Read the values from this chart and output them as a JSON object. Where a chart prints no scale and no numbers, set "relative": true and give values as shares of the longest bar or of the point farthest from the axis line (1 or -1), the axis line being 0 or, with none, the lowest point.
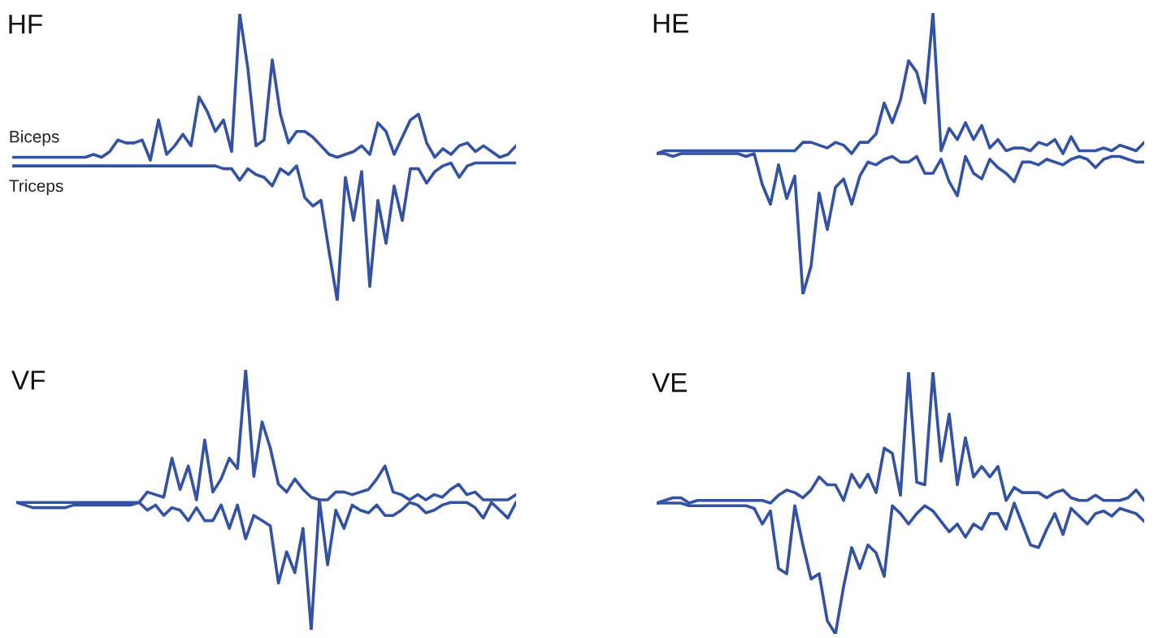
{
  "chart_data": [
    {
      "type": "line",
      "title": "HF",
      "relative": true,
      "legend": false,
      "categories": [
        null,
        null,
        null,
        null,
        null,
        null,
        null,
        null,
        null,
        null,
        null,
        null,
        null,
        null,
        null,
        null,
        null,
        null,
        null,
        null,
        null,
        null,
        null,
        null,
        null,
        null,
        null,
        null,
        null,
        null,
        null,
        null,
        null,
        null,
        null,
        null,
        null,
        null,
        null,
        null,
        null,
        null,
        null,
        null,
        null,
        null,
        null,
        null,
        null,
        null,
        null,
        null,
        null,
        null,
        null,
        null,
        null,
        null,
        null,
        null,
        null,
        null,
        null
      ],
      "series": [
        {
          "name": "Biceps",
          "color": "#3352a3",
          "values": [
            0.5,
            0.5,
            0.5,
            0.5,
            0.5,
            0.5,
            0.5,
            0.5,
            0.5,
            0.5,
            0.51,
            0.5,
            0.52,
            0.56,
            0.55,
            0.55,
            0.56,
            0.49,
            0.63,
            0.51,
            0.54,
            0.58,
            0.54,
            0.71,
            0.66,
            0.59,
            0.63,
            0.52,
            1.0,
            0.81,
            0.54,
            0.56,
            0.84,
            0.65,
            0.55,
            0.59,
            0.59,
            0.57,
            0.54,
            0.51,
            0.5,
            0.51,
            0.52,
            0.54,
            0.51,
            0.62,
            0.59,
            0.51,
            0.57,
            0.63,
            0.65,
            0.55,
            0.5,
            0.53,
            0.51,
            0.54,
            0.55,
            0.52,
            0.54,
            0.52,
            0.5,
            0.51,
            0.54
          ]
        },
        {
          "name": "Triceps",
          "color": "#3352a3",
          "values": [
            0.47,
            0.47,
            0.47,
            0.47,
            0.47,
            0.47,
            0.47,
            0.47,
            0.47,
            0.47,
            0.47,
            0.47,
            0.47,
            0.47,
            0.47,
            0.47,
            0.47,
            0.47,
            0.47,
            0.47,
            0.47,
            0.47,
            0.47,
            0.47,
            0.47,
            0.47,
            0.46,
            0.46,
            0.42,
            0.46,
            0.44,
            0.43,
            0.4,
            0.46,
            0.44,
            0.47,
            0.36,
            0.33,
            0.35,
            0.17,
            0,
            0.43,
            0.28,
            0.45,
            0.05,
            0.35,
            0.2,
            0.4,
            0.28,
            0.46,
            0.46,
            0.41,
            0.45,
            0.47,
            0.48,
            0.43,
            0.47,
            0.48,
            0.48,
            0.48,
            0.48,
            0.48,
            0.48
          ]
        }
      ]
    },
    {
      "type": "line",
      "title": "HE",
      "relative": true,
      "legend": false,
      "categories": [
        null,
        null,
        null,
        null,
        null,
        null,
        null,
        null,
        null,
        null,
        null,
        null,
        null,
        null,
        null,
        null,
        null,
        null,
        null,
        null,
        null,
        null,
        null,
        null,
        null,
        null,
        null,
        null,
        null,
        null,
        null,
        null,
        null,
        null,
        null,
        null,
        null,
        null,
        null,
        null,
        null,
        null,
        null,
        null,
        null,
        null,
        null,
        null,
        null,
        null,
        null,
        null,
        null,
        null,
        null,
        null,
        null,
        null,
        null,
        null,
        null
      ],
      "series": [
        {
          "color": "#3352a3",
          "values": [
            0.5,
            0.51,
            0.51,
            0.51,
            0.51,
            0.51,
            0.51,
            0.51,
            0.51,
            0.51,
            0.51,
            0.51,
            0.51,
            0.51,
            0.51,
            0.51,
            0.51,
            0.51,
            0.54,
            0.54,
            0.53,
            0.52,
            0.54,
            0.53,
            0.5,
            0.54,
            0.54,
            0.57,
            0.68,
            0.61,
            0.69,
            0.83,
            0.79,
            0.68,
            1.0,
            0.51,
            0.59,
            0.55,
            0.61,
            0.55,
            0.6,
            0.52,
            0.55,
            0.51,
            0.52,
            0.52,
            0.51,
            0.54,
            0.53,
            0.55,
            0.5,
            0.56,
            0.51,
            0.51,
            0.51,
            0.52,
            0.51,
            0.53,
            0.52,
            0.51,
            0.54
          ]
        },
        {
          "color": "#3352a3",
          "values": [
            0.5,
            0.5,
            0.49,
            0.5,
            0.5,
            0.5,
            0.5,
            0.5,
            0.5,
            0.5,
            0.5,
            0.49,
            0.5,
            0.39,
            0.32,
            0.46,
            0.34,
            0.42,
            0,
            0.1,
            0.36,
            0.23,
            0.38,
            0.41,
            0.32,
            0.42,
            0.47,
            0.46,
            0.48,
            0.49,
            0.47,
            0.47,
            0.49,
            0.43,
            0.43,
            0.48,
            0.4,
            0.35,
            0.49,
            0.43,
            0.41,
            0.48,
            0.45,
            0.43,
            0.4,
            0.47,
            0.47,
            0.46,
            0.48,
            0.47,
            0.46,
            0.48,
            0.49,
            0.48,
            0.45,
            0.48,
            0.49,
            0.49,
            0.48,
            0.47,
            0.47
          ]
        }
      ]
    },
    {
      "type": "line",
      "title": "VF",
      "relative": true,
      "legend": false,
      "categories": [
        null,
        null,
        null,
        null,
        null,
        null,
        null,
        null,
        null,
        null,
        null,
        null,
        null,
        null,
        null,
        null,
        null,
        null,
        null,
        null,
        null,
        null,
        null,
        null,
        null,
        null,
        null,
        null,
        null,
        null,
        null,
        null,
        null,
        null,
        null,
        null,
        null,
        null,
        null,
        null,
        null,
        null,
        null,
        null,
        null,
        null,
        null,
        null,
        null,
        null,
        null,
        null,
        null,
        null,
        null,
        null,
        null,
        null,
        null,
        null,
        null,
        null
      ],
      "series": [
        {
          "color": "#3352a3",
          "values": [
            0.49,
            0.49,
            0.49,
            0.49,
            0.49,
            0.49,
            0.49,
            0.49,
            0.49,
            0.49,
            0.49,
            0.49,
            0.49,
            0.49,
            0.49,
            0.49,
            0.53,
            0.52,
            0.51,
            0.66,
            0.54,
            0.63,
            0.5,
            0.73,
            0.53,
            0.58,
            0.66,
            0.62,
            1.0,
            0.59,
            0.8,
            0.7,
            0.56,
            0.53,
            0.58,
            0.54,
            0.51,
            0.5,
            0.5,
            0.53,
            0.53,
            0.52,
            0.53,
            0.54,
            0.58,
            0.63,
            0.53,
            0.52,
            0.5,
            0.52,
            0.5,
            0.52,
            0.51,
            0.54,
            0.56,
            0.52,
            0.53,
            0.5,
            0.5,
            0.5,
            0.5,
            0.52
          ]
        },
        {
          "color": "#3352a3",
          "values": [
            0.49,
            0.48,
            0.47,
            0.47,
            0.47,
            0.47,
            0.47,
            0.48,
            0.48,
            0.48,
            0.48,
            0.48,
            0.48,
            0.48,
            0.48,
            0.49,
            0.46,
            0.48,
            0.44,
            0.47,
            0.46,
            0.42,
            0.47,
            0.42,
            0.42,
            0.48,
            0.39,
            0.48,
            0.35,
            0.44,
            0.42,
            0.4,
            0.18,
            0.3,
            0.22,
            0.39,
            0,
            0.5,
            0.25,
            0.46,
            0.39,
            0.48,
            0.46,
            0.45,
            0.48,
            0.44,
            0.44,
            0.46,
            0.49,
            0.48,
            0.45,
            0.46,
            0.48,
            0.49,
            0.49,
            0.49,
            0.47,
            0.43,
            0.49,
            0.46,
            0.43,
            0.49
          ]
        }
      ]
    },
    {
      "type": "line",
      "title": "VE",
      "relative": true,
      "legend": false,
      "categories": [
        null,
        null,
        null,
        null,
        null,
        null,
        null,
        null,
        null,
        null,
        null,
        null,
        null,
        null,
        null,
        null,
        null,
        null,
        null,
        null,
        null,
        null,
        null,
        null,
        null,
        null,
        null,
        null,
        null,
        null,
        null,
        null,
        null,
        null,
        null,
        null,
        null,
        null,
        null,
        null,
        null,
        null,
        null,
        null,
        null,
        null,
        null,
        null,
        null,
        null,
        null,
        null,
        null,
        null,
        null,
        null,
        null,
        null,
        null,
        null,
        null
      ],
      "series": [
        {
          "color": "#3352a3",
          "values": [
            0.5,
            0.51,
            0.52,
            0.52,
            0.5,
            0.51,
            0.51,
            0.51,
            0.51,
            0.51,
            0.51,
            0.51,
            0.51,
            0.51,
            0.5,
            0.53,
            0.55,
            0.54,
            0.52,
            0.55,
            0.6,
            0.57,
            0.57,
            0.51,
            0.61,
            0.56,
            0.61,
            0.54,
            0.71,
            0.69,
            0.53,
            1.0,
            0.58,
            0.57,
            1.0,
            0.66,
            0.84,
            0.57,
            0.75,
            0.6,
            0.64,
            0.6,
            0.64,
            0.51,
            0.56,
            0.54,
            0.54,
            0.54,
            0.52,
            0.54,
            0.55,
            0.52,
            0.51,
            0.51,
            0.53,
            0.51,
            0.51,
            0.51,
            0.52,
            0.55,
            0.51
          ]
        },
        {
          "color": "#3352a3",
          "values": [
            0.5,
            0.5,
            0.5,
            0.5,
            0.49,
            0.49,
            0.49,
            0.49,
            0.49,
            0.49,
            0.49,
            0.49,
            0.48,
            0.42,
            0.47,
            0.25,
            0.23,
            0.49,
            0.34,
            0.21,
            0.23,
            0.05,
            0,
            0.18,
            0.33,
            0.25,
            0.34,
            0.31,
            0.22,
            0.49,
            0.46,
            0.42,
            0.46,
            0.49,
            0.47,
            0.43,
            0.39,
            0.42,
            0.37,
            0.42,
            0.4,
            0.46,
            0.46,
            0.4,
            0.5,
            0.42,
            0.34,
            0.33,
            0.4,
            0.46,
            0.38,
            0.48,
            0.45,
            0.42,
            0.46,
            0.47,
            0.45,
            0.48,
            0.47,
            0.46,
            0.43
          ]
        }
      ]
    }
  ]
}
